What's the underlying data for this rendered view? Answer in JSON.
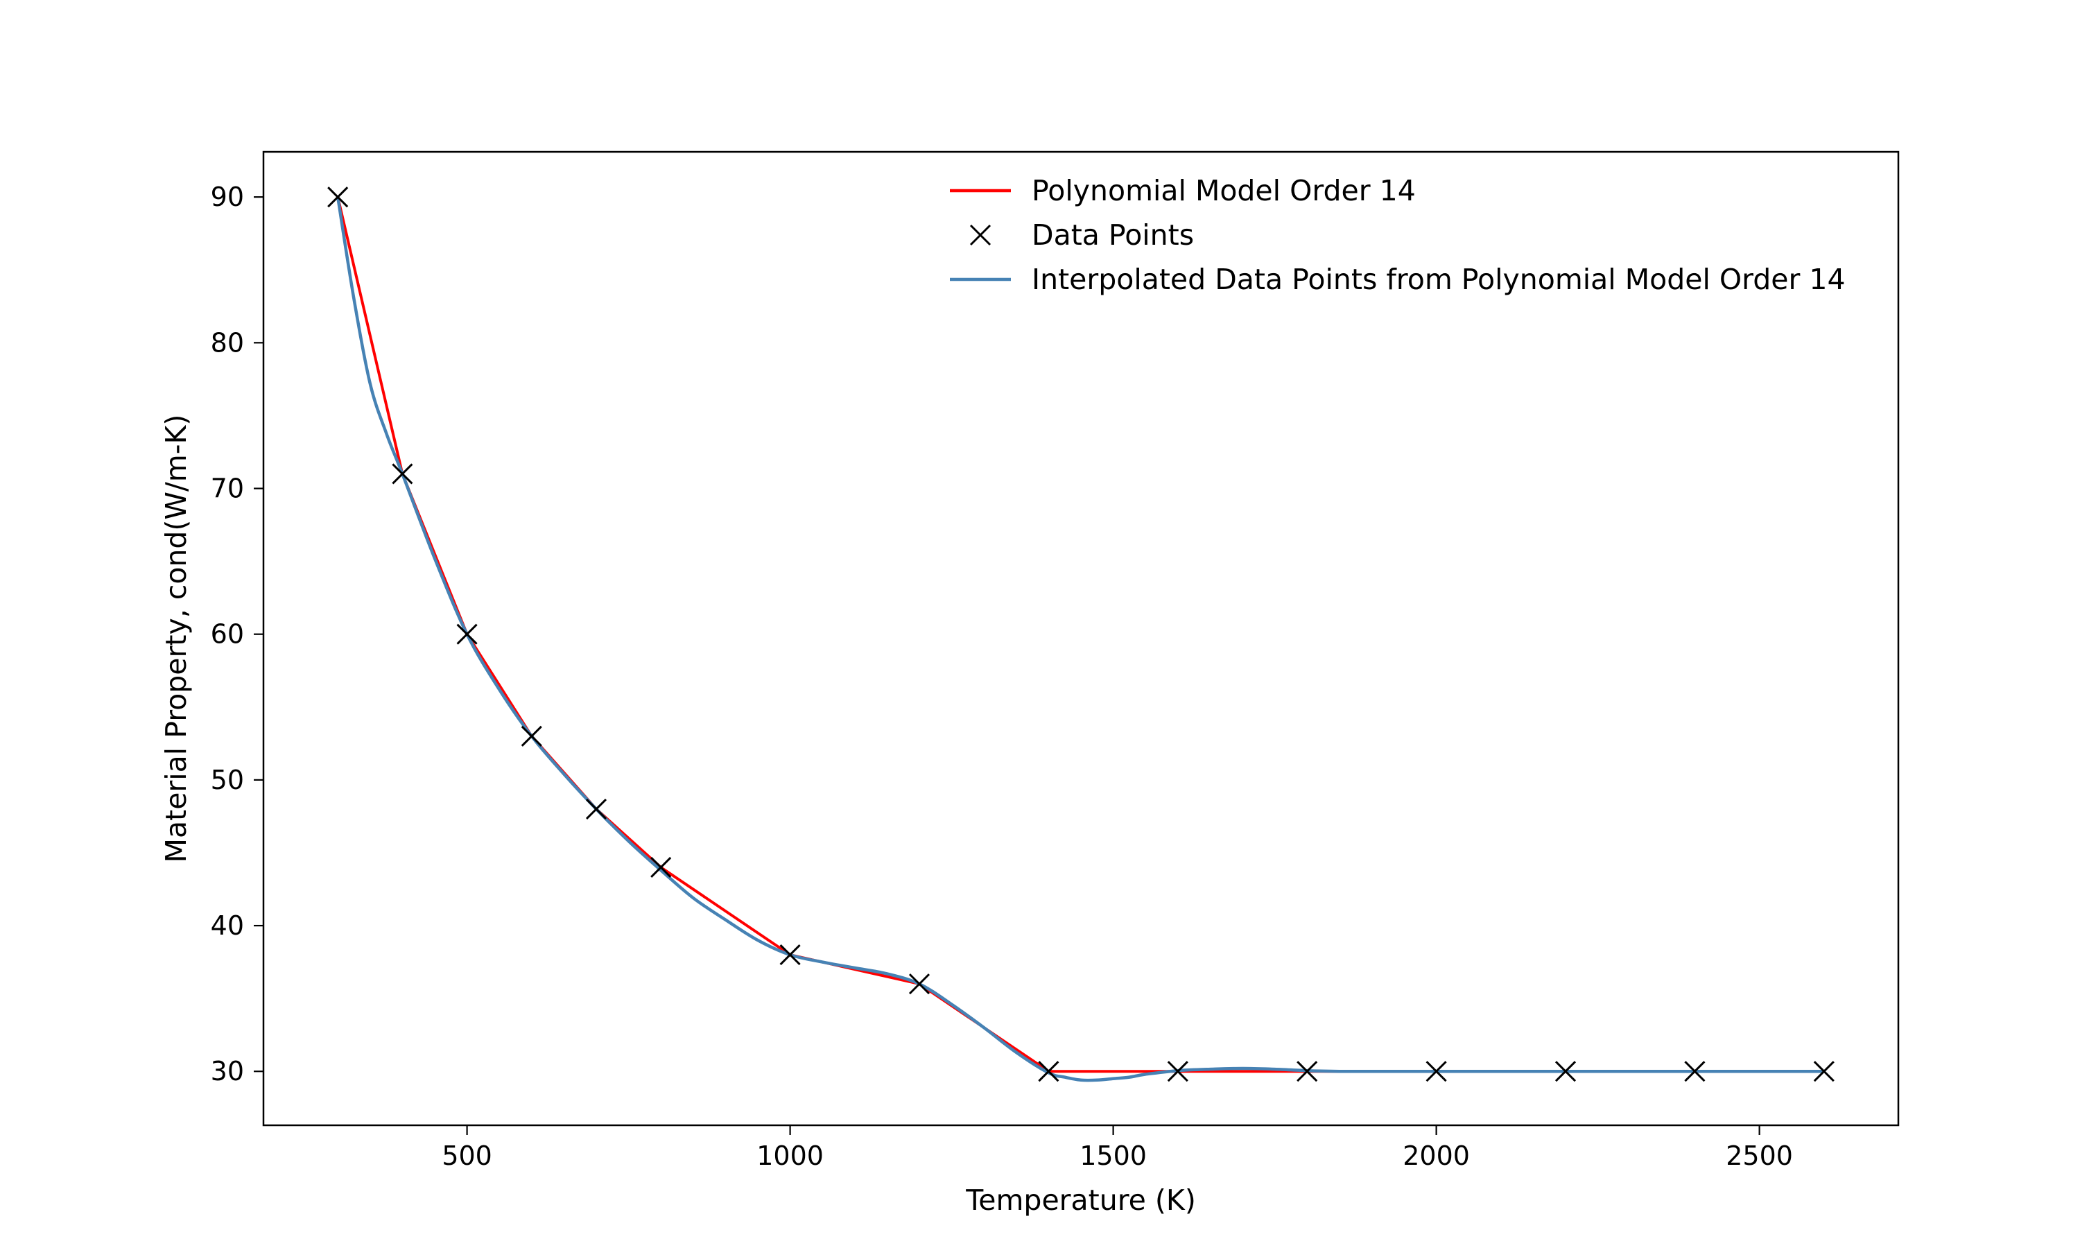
{
  "chart_data": {
    "type": "line",
    "title": "",
    "xlabel": "Temperature (K)",
    "ylabel": "Material Property, cond(W/m-K)",
    "xlim": [
      185,
      2715
    ],
    "ylim": [
      26.3,
      93.1
    ],
    "x_ticks": [
      500,
      1000,
      1500,
      2000,
      2500
    ],
    "y_ticks": [
      30,
      40,
      50,
      60,
      70,
      80,
      90
    ],
    "grid": false,
    "legend_position": "top-right",
    "series": [
      {
        "name": "Polynomial Model Order 14",
        "kind": "line",
        "color": "#ff0000",
        "x": [
          300,
          400,
          500,
          600,
          700,
          800,
          1000,
          1200,
          1400,
          1600,
          1800,
          2000,
          2200,
          2400,
          2600
        ],
        "y": [
          90,
          71,
          60,
          53,
          48,
          44,
          38,
          36,
          30,
          30,
          30,
          30,
          30,
          30,
          30
        ]
      },
      {
        "name": "Data Points",
        "kind": "scatter",
        "marker": "x",
        "color": "#000000",
        "x": [
          300,
          400,
          500,
          600,
          700,
          800,
          1000,
          1200,
          1400,
          1600,
          1800,
          2000,
          2200,
          2400,
          2600
        ],
        "y": [
          90,
          71,
          60,
          53,
          48,
          44,
          38,
          36,
          30,
          30,
          30,
          30,
          30,
          30,
          30
        ]
      },
      {
        "name": "Interpolated Data Points from Polynomial Model Order 14",
        "kind": "line",
        "color": "#4682b4",
        "x": [
          300,
          325,
          350,
          375,
          400,
          450,
          500,
          550,
          600,
          650,
          700,
          750,
          800,
          850,
          900,
          950,
          1000,
          1050,
          1100,
          1150,
          1200,
          1250,
          1300,
          1350,
          1400,
          1425,
          1450,
          1475,
          1500,
          1525,
          1550,
          1600,
          1650,
          1700,
          1750,
          1800,
          1850,
          1900,
          2000,
          2200,
          2400,
          2600
        ],
        "y": [
          90,
          83,
          77.2,
          73.8,
          71,
          65.2,
          60,
          56.2,
          53,
          50.4,
          48,
          45.8,
          43.8,
          41.9,
          40.4,
          39,
          38,
          37.5,
          37.1,
          36.7,
          36,
          34.6,
          33,
          31.3,
          29.9,
          29.6,
          29.4,
          29.4,
          29.5,
          29.6,
          29.8,
          30.05,
          30.15,
          30.2,
          30.15,
          30.05,
          30,
          30,
          30,
          30,
          30,
          30
        ]
      }
    ]
  }
}
